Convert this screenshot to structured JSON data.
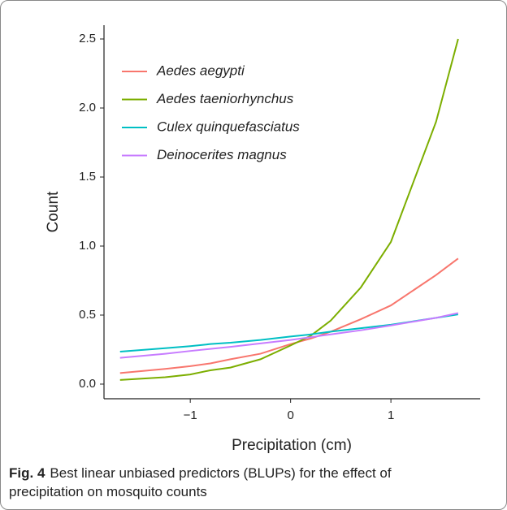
{
  "chart_data": {
    "type": "line",
    "xlabel": "Precipitation (cm)",
    "ylabel": "Count",
    "x": [
      -1.7,
      -1.25,
      -1.0,
      -0.8,
      -0.6,
      -0.3,
      0,
      0.2,
      0.4,
      0.7,
      1.0,
      1.45,
      1.67
    ],
    "series": [
      {
        "name": "Aedes aegypti",
        "color": "#f8766d",
        "values": [
          0.08,
          0.11,
          0.13,
          0.15,
          0.18,
          0.22,
          0.29,
          0.33,
          0.38,
          0.47,
          0.57,
          0.79,
          0.91
        ]
      },
      {
        "name": "Aedes taeniorhynchus",
        "color": "#7cae00",
        "values": [
          0.03,
          0.05,
          0.07,
          0.1,
          0.12,
          0.18,
          0.28,
          0.35,
          0.46,
          0.7,
          1.03,
          1.9,
          2.5
        ]
      },
      {
        "name": "Culex quinquefasciatus",
        "color": "#00bfc4",
        "values": [
          0.235,
          0.26,
          0.275,
          0.29,
          0.3,
          0.32,
          0.345,
          0.36,
          0.38,
          0.405,
          0.43,
          0.48,
          0.505
        ]
      },
      {
        "name": "Deinocerites magnus",
        "color": "#c77cff",
        "values": [
          0.19,
          0.22,
          0.24,
          0.255,
          0.27,
          0.295,
          0.32,
          0.34,
          0.36,
          0.39,
          0.425,
          0.48,
          0.515
        ]
      }
    ],
    "xlim": [
      -1.86,
      1.89
    ],
    "ylim": [
      -0.106,
      2.6
    ],
    "xticks": [
      {
        "value": -1,
        "label": "−1"
      },
      0,
      1
    ],
    "yticks": [
      {
        "value": 0,
        "label": "0.0"
      },
      0.5,
      {
        "value": 1,
        "label": "1.0"
      },
      1.5,
      {
        "value": 2,
        "label": "2.0"
      },
      2.5
    ],
    "legend": "top-left",
    "legend_italic": true,
    "caption_label": "Fig. 4",
    "caption": "Best linear unbiased predictors (BLUPs) for the effect of precipitation on mosquito counts"
  }
}
